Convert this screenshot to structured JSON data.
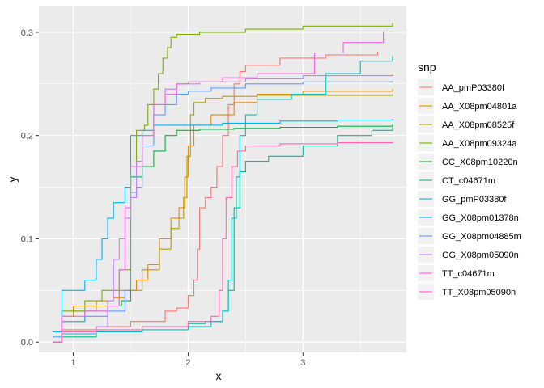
{
  "chart_data": {
    "type": "line",
    "title": "",
    "xlabel": "x",
    "ylabel": "y",
    "xlim": [
      0.7,
      3.9
    ],
    "ylim": [
      -0.01,
      0.325
    ],
    "x_ticks": [
      1,
      2,
      3
    ],
    "y_ticks": [
      0.0,
      0.1,
      0.2,
      0.3
    ],
    "x_tick_labels": [
      "1",
      "2",
      "3"
    ],
    "y_tick_labels": [
      "0.0",
      "0.1",
      "0.2",
      "0.3"
    ],
    "grid": true,
    "background": "#ebebeb",
    "legend": {
      "title": "snp",
      "position": "right"
    },
    "series": [
      {
        "name": "AA_pmP03380f",
        "color": "#F8766D",
        "points": [
          [
            0.82,
            0.0
          ],
          [
            0.9,
            0.012
          ],
          [
            1.2,
            0.015
          ],
          [
            1.5,
            0.02
          ],
          [
            1.8,
            0.03
          ],
          [
            1.9,
            0.033
          ],
          [
            2.0,
            0.045
          ],
          [
            2.05,
            0.06
          ],
          [
            2.08,
            0.09
          ],
          [
            2.1,
            0.13
          ],
          [
            2.15,
            0.14
          ],
          [
            2.2,
            0.15
          ],
          [
            2.25,
            0.17
          ],
          [
            2.3,
            0.2
          ],
          [
            2.35,
            0.23
          ],
          [
            2.4,
            0.25
          ],
          [
            2.45,
            0.262
          ],
          [
            2.5,
            0.268
          ],
          [
            2.8,
            0.275
          ],
          [
            3.2,
            0.278
          ],
          [
            3.65,
            0.281
          ]
        ]
      },
      {
        "name": "AA_X08pm04801a",
        "color": "#DE8C00",
        "points": [
          [
            0.82,
            0.0
          ],
          [
            0.9,
            0.03
          ],
          [
            1.0,
            0.035
          ],
          [
            1.2,
            0.04
          ],
          [
            1.35,
            0.043
          ],
          [
            1.45,
            0.05
          ],
          [
            1.55,
            0.06
          ],
          [
            1.65,
            0.075
          ],
          [
            1.75,
            0.1
          ],
          [
            1.85,
            0.12
          ],
          [
            1.92,
            0.13
          ],
          [
            1.97,
            0.16
          ],
          [
            2.0,
            0.19
          ],
          [
            2.05,
            0.21
          ],
          [
            2.2,
            0.22
          ],
          [
            2.4,
            0.232
          ],
          [
            2.6,
            0.24
          ],
          [
            3.0,
            0.243
          ],
          [
            3.78,
            0.245
          ]
        ]
      },
      {
        "name": "AA_X08pm08525f",
        "color": "#B79F00",
        "points": [
          [
            0.82,
            0.0
          ],
          [
            0.9,
            0.025
          ],
          [
            1.0,
            0.03
          ],
          [
            1.2,
            0.035
          ],
          [
            1.4,
            0.05
          ],
          [
            1.6,
            0.07
          ],
          [
            1.75,
            0.09
          ],
          [
            1.85,
            0.11
          ],
          [
            1.92,
            0.12
          ],
          [
            1.96,
            0.14
          ],
          [
            1.99,
            0.18
          ],
          [
            2.02,
            0.22
          ],
          [
            2.05,
            0.232
          ],
          [
            2.15,
            0.236
          ],
          [
            2.3,
            0.238
          ],
          [
            2.6,
            0.239
          ],
          [
            3.78,
            0.24
          ]
        ]
      },
      {
        "name": "AA_X08pm09324a",
        "color": "#7CAE00",
        "points": [
          [
            0.82,
            0.0
          ],
          [
            0.9,
            0.03
          ],
          [
            1.1,
            0.04
          ],
          [
            1.25,
            0.05
          ],
          [
            1.4,
            0.07
          ],
          [
            1.5,
            0.17
          ],
          [
            1.55,
            0.205
          ],
          [
            1.62,
            0.21
          ],
          [
            1.65,
            0.23
          ],
          [
            1.7,
            0.245
          ],
          [
            1.74,
            0.26
          ],
          [
            1.78,
            0.275
          ],
          [
            1.82,
            0.285
          ],
          [
            1.85,
            0.295
          ],
          [
            1.9,
            0.298
          ],
          [
            2.1,
            0.3
          ],
          [
            2.5,
            0.303
          ],
          [
            3.0,
            0.306
          ],
          [
            3.78,
            0.309
          ]
        ]
      },
      {
        "name": "CC_X08pm10220n",
        "color": "#00BA38",
        "points": [
          [
            0.82,
            0.0
          ],
          [
            0.9,
            0.02
          ],
          [
            1.1,
            0.03
          ],
          [
            1.3,
            0.035
          ],
          [
            1.42,
            0.04
          ],
          [
            1.5,
            0.16
          ],
          [
            1.6,
            0.17
          ],
          [
            1.7,
            0.185
          ],
          [
            1.8,
            0.2
          ],
          [
            1.9,
            0.205
          ],
          [
            2.1,
            0.206
          ],
          [
            2.4,
            0.207
          ],
          [
            2.8,
            0.208
          ],
          [
            3.3,
            0.209
          ],
          [
            3.78,
            0.211
          ]
        ]
      },
      {
        "name": "CT_c04671m",
        "color": "#00C08B",
        "points": [
          [
            0.82,
            0.0
          ],
          [
            0.9,
            0.005
          ],
          [
            1.2,
            0.01
          ],
          [
            1.6,
            0.015
          ],
          [
            2.0,
            0.018
          ],
          [
            2.15,
            0.02
          ],
          [
            2.3,
            0.03
          ],
          [
            2.35,
            0.05
          ],
          [
            2.4,
            0.13
          ],
          [
            2.45,
            0.165
          ],
          [
            2.5,
            0.175
          ],
          [
            2.7,
            0.18
          ],
          [
            3.0,
            0.19
          ],
          [
            3.3,
            0.2
          ],
          [
            3.6,
            0.205
          ],
          [
            3.78,
            0.21
          ]
        ]
      },
      {
        "name": "GG_pmP03380f",
        "color": "#00BFC4",
        "points": [
          [
            0.82,
            0.0
          ],
          [
            0.9,
            0.008
          ],
          [
            1.2,
            0.01
          ],
          [
            1.6,
            0.012
          ],
          [
            2.0,
            0.015
          ],
          [
            2.2,
            0.02
          ],
          [
            2.3,
            0.03
          ],
          [
            2.35,
            0.06
          ],
          [
            2.38,
            0.12
          ],
          [
            2.42,
            0.16
          ],
          [
            2.45,
            0.2
          ],
          [
            2.5,
            0.22
          ],
          [
            2.6,
            0.235
          ],
          [
            2.9,
            0.24
          ],
          [
            3.2,
            0.26
          ],
          [
            3.5,
            0.272
          ],
          [
            3.78,
            0.277
          ]
        ]
      },
      {
        "name": "GG_X08pm01378n",
        "color": "#00B4F0",
        "points": [
          [
            0.82,
            0.01
          ],
          [
            0.9,
            0.05
          ],
          [
            1.1,
            0.06
          ],
          [
            1.2,
            0.08
          ],
          [
            1.25,
            0.1
          ],
          [
            1.3,
            0.12
          ],
          [
            1.35,
            0.135
          ],
          [
            1.45,
            0.15
          ],
          [
            1.5,
            0.2
          ],
          [
            1.6,
            0.205
          ],
          [
            1.7,
            0.21
          ],
          [
            1.9,
            0.21
          ],
          [
            2.3,
            0.212
          ],
          [
            2.8,
            0.214
          ],
          [
            3.3,
            0.215
          ],
          [
            3.78,
            0.216
          ]
        ]
      },
      {
        "name": "GG_X08pm04885m",
        "color": "#619CFF",
        "points": [
          [
            0.82,
            0.005
          ],
          [
            0.9,
            0.02
          ],
          [
            1.1,
            0.025
          ],
          [
            1.3,
            0.03
          ],
          [
            1.45,
            0.05
          ],
          [
            1.5,
            0.145
          ],
          [
            1.55,
            0.15
          ],
          [
            1.6,
            0.19
          ],
          [
            1.7,
            0.22
          ],
          [
            1.8,
            0.23
          ],
          [
            1.9,
            0.24
          ],
          [
            2.0,
            0.243
          ],
          [
            2.2,
            0.246
          ],
          [
            2.5,
            0.25
          ],
          [
            3.0,
            0.252
          ],
          [
            3.78,
            0.253
          ]
        ]
      },
      {
        "name": "GG_X08pm05090n",
        "color": "#C77CFF",
        "points": [
          [
            0.82,
            0.0
          ],
          [
            0.9,
            0.01
          ],
          [
            1.2,
            0.015
          ],
          [
            1.3,
            0.04
          ],
          [
            1.35,
            0.08
          ],
          [
            1.4,
            0.1
          ],
          [
            1.45,
            0.12
          ],
          [
            1.5,
            0.14
          ],
          [
            1.55,
            0.175
          ],
          [
            1.6,
            0.2
          ],
          [
            1.7,
            0.23
          ],
          [
            1.8,
            0.245
          ],
          [
            1.9,
            0.25
          ],
          [
            2.1,
            0.252
          ],
          [
            2.5,
            0.255
          ],
          [
            3.0,
            0.258
          ],
          [
            3.78,
            0.26
          ]
        ]
      },
      {
        "name": "TT_c04671m",
        "color": "#F564E3",
        "points": [
          [
            0.82,
            0.0
          ],
          [
            0.9,
            0.025
          ],
          [
            1.1,
            0.03
          ],
          [
            1.3,
            0.035
          ],
          [
            1.4,
            0.07
          ],
          [
            1.45,
            0.13
          ],
          [
            1.5,
            0.17
          ],
          [
            1.6,
            0.2
          ],
          [
            1.7,
            0.23
          ],
          [
            1.8,
            0.24
          ],
          [
            1.9,
            0.25
          ],
          [
            2.0,
            0.252
          ],
          [
            2.3,
            0.256
          ],
          [
            2.6,
            0.26
          ],
          [
            3.1,
            0.28
          ],
          [
            3.35,
            0.29
          ],
          [
            3.7,
            0.301
          ]
        ]
      },
      {
        "name": "TT_X08pm05090n",
        "color": "#FF64B0",
        "points": [
          [
            0.82,
            0.0
          ],
          [
            0.9,
            0.01
          ],
          [
            1.2,
            0.012
          ],
          [
            1.6,
            0.015
          ],
          [
            2.0,
            0.02
          ],
          [
            2.2,
            0.025
          ],
          [
            2.27,
            0.05
          ],
          [
            2.3,
            0.1
          ],
          [
            2.33,
            0.14
          ],
          [
            2.38,
            0.17
          ],
          [
            2.43,
            0.185
          ],
          [
            2.5,
            0.19
          ],
          [
            2.8,
            0.192
          ],
          [
            3.3,
            0.193
          ],
          [
            3.78,
            0.194
          ]
        ]
      }
    ]
  }
}
